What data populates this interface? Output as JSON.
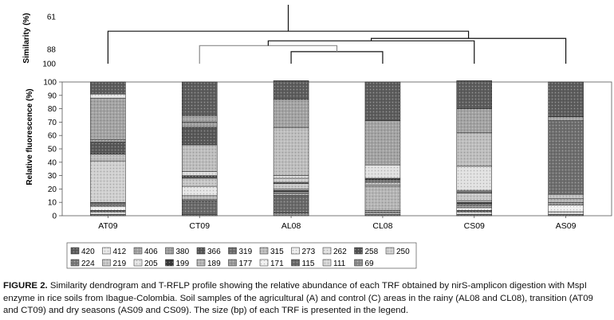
{
  "chart_data": [
    {
      "type": "dendrogram",
      "ylabel": "Similarity (%)",
      "ytick_labels": [
        "61",
        "88",
        "100"
      ],
      "ytick_values": [
        61,
        88,
        100
      ],
      "ylim": [
        55,
        100
      ],
      "leaves": [
        "AT09",
        "CT09",
        "AL08",
        "CL08",
        "CS09",
        "AS09"
      ],
      "merges": [
        {
          "a": "AL08",
          "b": "CL08",
          "similarity": 90
        },
        {
          "a": "CT09",
          "b": "AL08+CL08",
          "similarity": 85
        },
        {
          "a": "CT09+AL08+CL08",
          "b": "CS09",
          "similarity": 81
        },
        {
          "a": "CT09+AL08+CL08+CS09",
          "b": "AS09",
          "similarity": 79
        },
        {
          "a": "AT09",
          "b": "CT09+AL08+CL08+CS09+AS09",
          "similarity": 73
        }
      ]
    },
    {
      "type": "bar",
      "stacked": true,
      "ylabel": "Relative fluorescence (%)",
      "ylim": [
        0,
        100
      ],
      "yticks": [
        "0",
        "10",
        "20",
        "30",
        "40",
        "50",
        "60",
        "70",
        "80",
        "90",
        "100"
      ],
      "categories": [
        "AT09",
        "CT09",
        "AL08",
        "CL08",
        "CS09",
        "AS09"
      ],
      "legend_position": "bottom",
      "series": [
        {
          "name": "69",
          "color": "#8c8c8c",
          "values": [
            1,
            1,
            2,
            1,
            1,
            1
          ]
        },
        {
          "name": "111",
          "color": "#d6d6d6",
          "values": [
            2,
            0,
            0,
            1,
            2,
            2
          ]
        },
        {
          "name": "115",
          "color": "#6a6a6a",
          "values": [
            1,
            10,
            13,
            0,
            1,
            0
          ]
        },
        {
          "name": "171",
          "color": "#f0f0f0",
          "values": [
            3,
            0,
            0,
            0,
            2,
            5
          ]
        },
        {
          "name": "177",
          "color": "#9a9a9a",
          "values": [
            1,
            1,
            2,
            2,
            2,
            2
          ]
        },
        {
          "name": "189",
          "color": "#b5b5b5",
          "values": [
            1,
            3,
            1,
            18,
            1,
            3
          ]
        },
        {
          "name": "199",
          "color": "#3c3c3c",
          "values": [
            0,
            0,
            1,
            0,
            1,
            0
          ]
        },
        {
          "name": "205",
          "color": "#e4e4e4",
          "values": [
            0,
            7,
            1,
            1,
            1,
            0
          ]
        },
        {
          "name": "219",
          "color": "#c6c6c6",
          "values": [
            0,
            6,
            4,
            2,
            6,
            3
          ]
        },
        {
          "name": "224",
          "color": "#7a7a7a",
          "values": [
            1,
            1,
            1,
            2,
            1,
            0
          ]
        },
        {
          "name": "250",
          "color": "#cfcfcf",
          "values": [
            31,
            0,
            3,
            0,
            1,
            0
          ]
        },
        {
          "name": "258",
          "color": "#555555",
          "values": [
            0,
            1,
            0,
            1,
            0,
            0
          ]
        },
        {
          "name": "262",
          "color": "#e0e0e0",
          "values": [
            0,
            3,
            2,
            10,
            18,
            0
          ]
        },
        {
          "name": "273",
          "color": "#ececec",
          "values": [
            0,
            0,
            0,
            0,
            0,
            0
          ]
        },
        {
          "name": "315",
          "color": "#bdbdbd",
          "values": [
            5,
            20,
            36,
            0,
            25,
            0
          ]
        },
        {
          "name": "319",
          "color": "#6f6f6f",
          "values": [
            0,
            0,
            0,
            0,
            0,
            55
          ]
        },
        {
          "name": "366",
          "color": "#595959",
          "values": [
            9,
            13,
            0,
            0,
            0,
            0
          ]
        },
        {
          "name": "380",
          "color": "#9d9d9d",
          "values": [
            2,
            4,
            0,
            0,
            0,
            0
          ]
        },
        {
          "name": "406",
          "color": "#a3a3a3",
          "values": [
            31,
            5,
            21,
            33,
            18,
            3
          ]
        },
        {
          "name": "412",
          "color": "#e6e6e6",
          "values": [
            3,
            0,
            0,
            0,
            0,
            0
          ]
        },
        {
          "name": "420",
          "color": "#5e5e5e",
          "values": [
            9,
            25,
            14,
            29,
            21,
            26
          ]
        }
      ],
      "legend_row1": [
        "420",
        "412",
        "406",
        "380",
        "366",
        "319",
        "315",
        "273",
        "262",
        "258",
        "250"
      ],
      "legend_row2": [
        "224",
        "219",
        "205",
        "199",
        "189",
        "177",
        "171",
        "115",
        "111",
        "69"
      ]
    }
  ],
  "caption": {
    "lead": "FIGURE 2.",
    "text": "Similarity dendrogram and T-RFLP profile showing the relative abundance of each TRF obtained by nirS-amplicon digestion with MspI enzyme in rice soils from Ibague-Colombia. Soil samples of the agricultural (A) and control (C) areas in the rainy (AL08 and CL08), transition (AT09 and CT09) and dry seasons (AS09 and CS09). The size (bp) of each TRF is presented in the legend."
  }
}
